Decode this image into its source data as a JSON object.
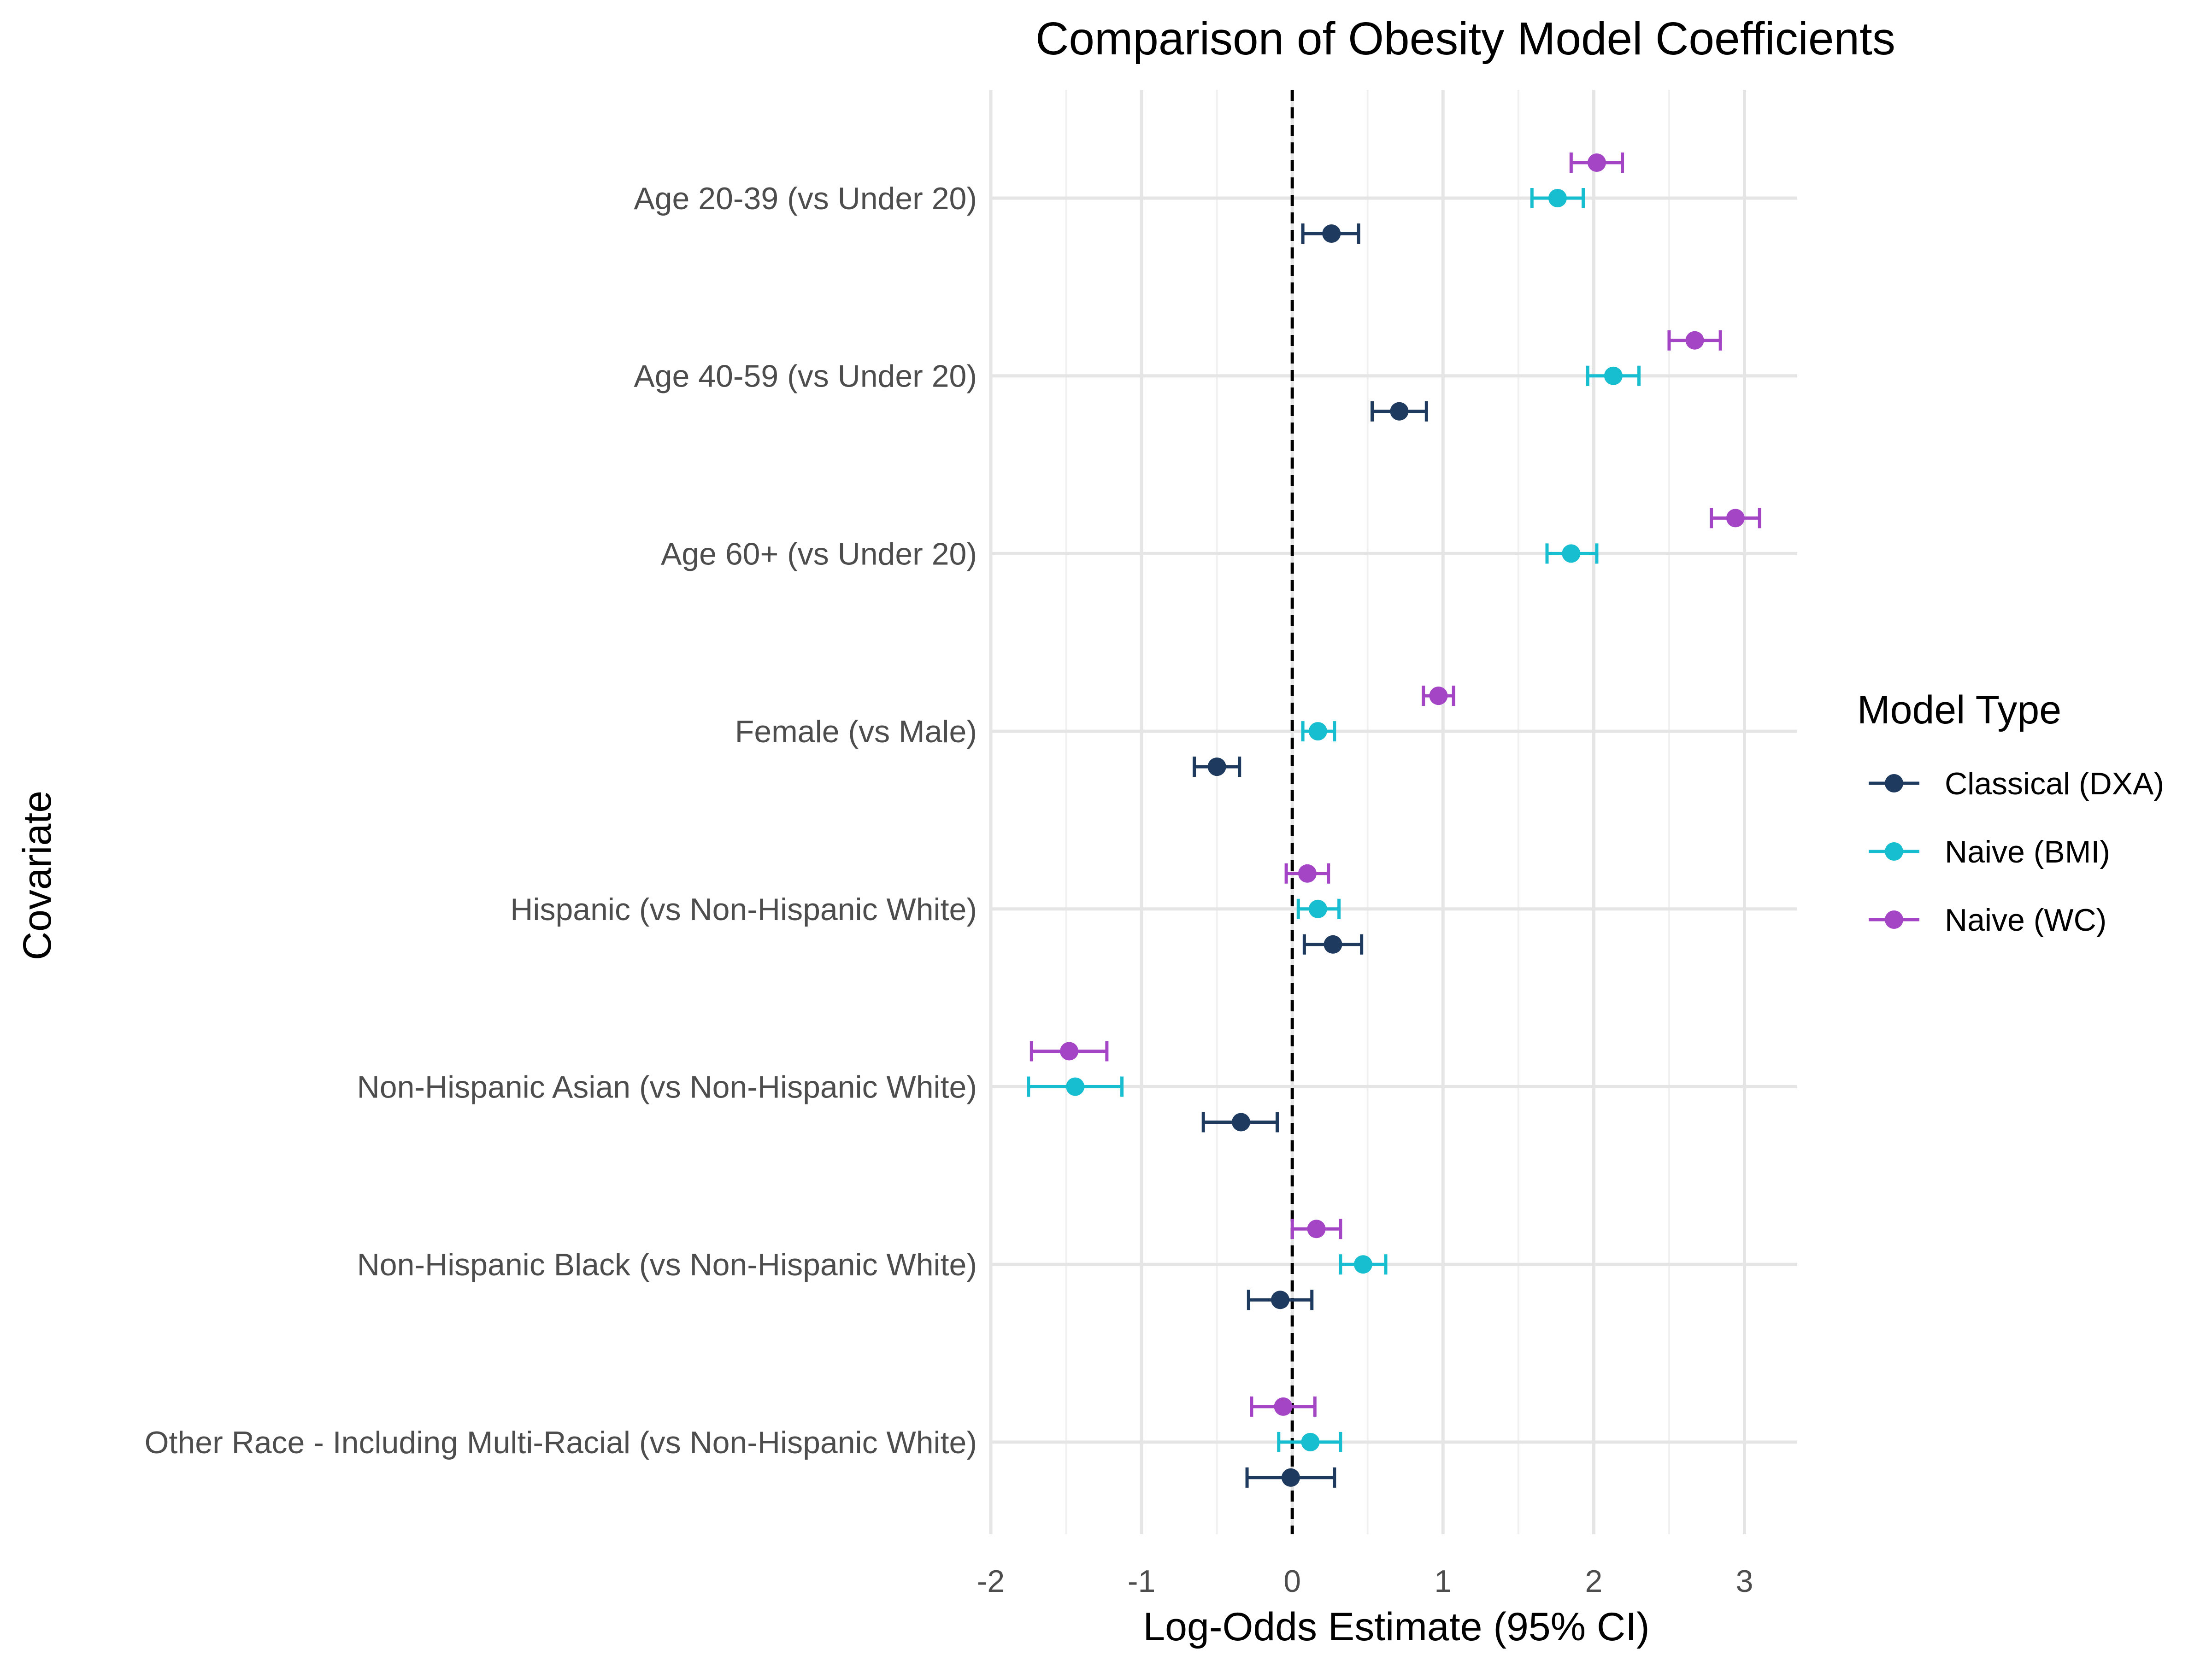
{
  "chart_data": {
    "type": "scatter",
    "subtype": "forest-plot-errorbars",
    "title": "Comparison of Obesity Model Coefficients",
    "xlabel": "Log-Odds Estimate (95% CI)",
    "ylabel": "Covariate",
    "xlim": [
      -2,
      3.35
    ],
    "x_ticks": [
      -2,
      -1,
      0,
      1,
      2,
      3
    ],
    "reference_line": {
      "x": 0,
      "style": "dashed"
    },
    "grid": true,
    "legend": {
      "title": "Model Type",
      "placement": "right"
    },
    "categories": [
      "Age 20-39 (vs Under 20)",
      "Age 40-59 (vs Under 20)",
      "Age 60+ (vs Under 20)",
      "Female (vs Male)",
      "Hispanic (vs Non-Hispanic White)",
      "Non-Hispanic Asian (vs Non-Hispanic White)",
      "Non-Hispanic Black (vs Non-Hispanic White)",
      "Other Race - Including Multi-Racial (vs Non-Hispanic White)"
    ],
    "series": [
      {
        "name": "Classical (DXA)",
        "color": "#1f3a5f",
        "estimates": [
          0.26,
          0.71,
          null,
          -0.5,
          0.27,
          -0.34,
          -0.08,
          -0.01
        ],
        "ci_low": [
          0.07,
          0.53,
          null,
          -0.65,
          0.08,
          -0.59,
          -0.29,
          -0.3
        ],
        "ci_high": [
          0.44,
          0.89,
          null,
          -0.35,
          0.46,
          -0.1,
          0.13,
          0.28
        ]
      },
      {
        "name": "Naive (BMI)",
        "color": "#17becf",
        "estimates": [
          1.76,
          2.13,
          1.85,
          0.17,
          0.17,
          -1.44,
          0.47,
          0.12
        ],
        "ci_low": [
          1.59,
          1.96,
          1.69,
          0.07,
          0.04,
          -1.75,
          0.32,
          -0.09
        ],
        "ci_high": [
          1.93,
          2.3,
          2.02,
          0.28,
          0.31,
          -1.13,
          0.62,
          0.32
        ]
      },
      {
        "name": "Naive (WC)",
        "color": "#a445c5",
        "estimates": [
          2.02,
          2.67,
          2.94,
          0.97,
          0.1,
          -1.48,
          0.16,
          -0.06
        ],
        "ci_low": [
          1.85,
          2.5,
          2.78,
          0.87,
          -0.04,
          -1.73,
          0.0,
          -0.27
        ],
        "ci_high": [
          2.19,
          2.84,
          3.1,
          1.07,
          0.24,
          -1.23,
          0.32,
          0.15
        ]
      }
    ]
  }
}
